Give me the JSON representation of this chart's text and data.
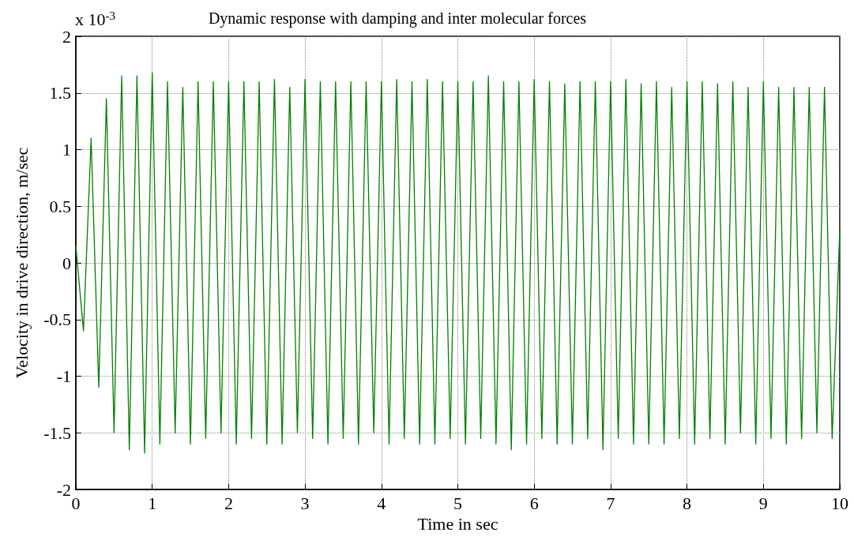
{
  "chart_data": {
    "type": "line",
    "title": "Dynamic response with damping and inter molecular forces",
    "xlabel": "Time in sec",
    "ylabel": "Velocity in drive direction, m/sec",
    "annotations": [
      "x 10$^{-3}$"
    ],
    "x": [
      0,
      0.1,
      0.2,
      0.3,
      0.4,
      0.5,
      0.6,
      0.7,
      0.8,
      0.9,
      1,
      1.1,
      1.2,
      1.3,
      1.4,
      1.5,
      1.6,
      1.7,
      1.8,
      1.9,
      2,
      2.1,
      2.2,
      2.3,
      2.4,
      2.5,
      2.6,
      2.7,
      2.8,
      2.9,
      3,
      3.1,
      3.2,
      3.3,
      3.4,
      3.5,
      3.6,
      3.7,
      3.8,
      3.9,
      4,
      4.1,
      4.2,
      4.3,
      4.4,
      4.5,
      4.6,
      4.7,
      4.8,
      4.9,
      5,
      5.1,
      5.2,
      5.3,
      5.4,
      5.5,
      5.6,
      5.7,
      5.8,
      5.9,
      6,
      6.1,
      6.2,
      6.3,
      6.4,
      6.5,
      6.6,
      6.7,
      6.8,
      6.9,
      7,
      7.1,
      7.2,
      7.3,
      7.4,
      7.5,
      7.6,
      7.7,
      7.8,
      7.9,
      8,
      8.1,
      8.2,
      8.3,
      8.4,
      8.5,
      8.6,
      8.7,
      8.8,
      8.9,
      9,
      9.1,
      9.2,
      9.3,
      9.4,
      9.5,
      9.6,
      9.7,
      9.8,
      9.9,
      10
    ],
    "series": [
      {
        "color": "#008000",
        "values": [
          0.15,
          -0.6,
          1.1,
          -1.1,
          1.45,
          -1.5,
          1.65,
          -1.65,
          1.65,
          -1.68,
          1.68,
          -1.6,
          1.6,
          -1.5,
          1.55,
          -1.6,
          1.6,
          -1.55,
          1.6,
          -1.5,
          1.6,
          -1.6,
          1.6,
          -1.55,
          1.6,
          -1.6,
          1.62,
          -1.6,
          1.55,
          -1.5,
          1.62,
          -1.55,
          1.6,
          -1.6,
          1.6,
          -1.55,
          1.6,
          -1.6,
          1.6,
          -1.5,
          1.6,
          -1.6,
          1.62,
          -1.55,
          1.6,
          -1.6,
          1.62,
          -1.6,
          1.6,
          -1.55,
          1.6,
          -1.6,
          1.6,
          -1.55,
          1.65,
          -1.6,
          1.6,
          -1.65,
          1.6,
          -1.6,
          1.62,
          -1.55,
          1.6,
          -1.6,
          1.58,
          -1.6,
          1.6,
          -1.55,
          1.6,
          -1.65,
          1.6,
          -1.55,
          1.62,
          -1.6,
          1.58,
          -1.6,
          1.6,
          -1.6,
          1.55,
          -1.55,
          1.6,
          -1.6,
          1.6,
          -1.55,
          1.58,
          -1.6,
          1.6,
          -1.5,
          1.55,
          -1.6,
          1.6,
          -1.55,
          1.55,
          -1.6,
          1.55,
          -1.55,
          1.55,
          -1.5,
          1.55,
          -1.55,
          0.3
        ]
      }
    ],
    "xlim": [
      0,
      10
    ],
    "xticks": [
      0,
      1,
      2,
      3,
      4,
      5,
      6,
      7,
      8,
      9,
      10
    ],
    "ylim": [
      -2,
      2
    ],
    "yticks": [
      -2,
      -1.5,
      -1,
      -0.5,
      0,
      0.5,
      1,
      1.5,
      2
    ],
    "grid": true,
    "marker": "none",
    "line_style": "solid"
  }
}
